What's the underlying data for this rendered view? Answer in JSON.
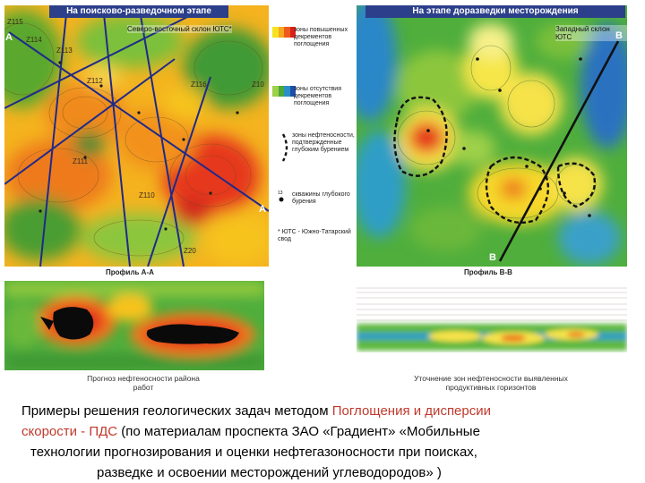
{
  "left_panel": {
    "header": "На поисково-разведочном этапе",
    "region": "Северо-восточный склон ЮТС*",
    "well_labels": [
      "Z115",
      "Z114",
      "Z113",
      "Z112",
      "Z116",
      "Z10",
      "Z111",
      "Z110",
      "Z20"
    ],
    "section_letters": {
      "start": "A",
      "end": "A"
    },
    "profile_label": "Профиль А-А",
    "section_caption": "Прогноз нефтеносности района работ"
  },
  "legend": {
    "items": [
      {
        "text": "зоны повышенных декрементов поглощения"
      },
      {
        "text": "зоны отсутствия декрементов поглощения"
      },
      {
        "text": "зоны нефтеносности, подтвержденные глубоким бурением"
      },
      {
        "text": "скважины глубокого бурения"
      },
      {
        "text": "* ЮТС - Южно-Татарский свод"
      }
    ]
  },
  "right_panel": {
    "header": "На этапе доразведки месторождения",
    "region": "Западный склон ЮТС",
    "section_letters": {
      "start": "B",
      "end": "B"
    },
    "profile_label": "Профиль В-В",
    "section_caption": "Уточнение зон нефтеносности выявленных продуктивных горизонтов"
  },
  "caption": {
    "line1_a": "Примеры решения геологических задач методом ",
    "line1_b": "Поглощения и дисперсии",
    "line2_a": "скорости  - ПДС",
    "line2_b": "  (по материалам проспекта ЗАО «Градиент»  «Мобильные",
    "line3": "технологии прогнозирования и оценки нефтегазоносности при поисках,",
    "line4": "разведке и освоении месторождений углеводородов» )"
  }
}
